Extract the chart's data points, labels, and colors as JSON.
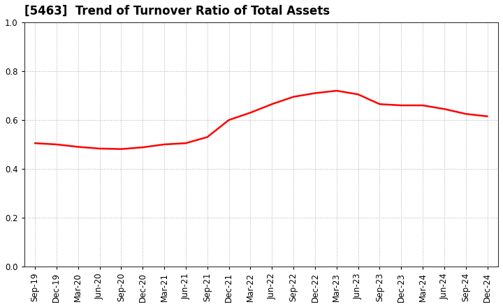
{
  "title": "[5463]  Trend of Turnover Ratio of Total Assets",
  "x_labels": [
    "Sep-19",
    "Dec-19",
    "Mar-20",
    "Jun-20",
    "Sep-20",
    "Dec-20",
    "Mar-21",
    "Jun-21",
    "Sep-21",
    "Dec-21",
    "Mar-22",
    "Jun-22",
    "Sep-22",
    "Dec-22",
    "Mar-23",
    "Jun-23",
    "Sep-23",
    "Dec-23",
    "Mar-24",
    "Jun-24",
    "Sep-24",
    "Dec-24"
  ],
  "y_values": [
    0.505,
    0.5,
    0.49,
    0.483,
    0.481,
    0.488,
    0.5,
    0.505,
    0.53,
    0.6,
    0.63,
    0.665,
    0.695,
    0.71,
    0.72,
    0.705,
    0.665,
    0.66,
    0.66,
    0.645,
    0.625,
    0.615
  ],
  "ylim": [
    0.0,
    1.0
  ],
  "yticks": [
    0.0,
    0.2,
    0.4,
    0.6,
    0.8,
    1.0
  ],
  "line_color": "#FF0000",
  "line_width": 1.8,
  "background_color": "#ffffff",
  "grid_color": "#999999",
  "title_fontsize": 12,
  "tick_fontsize": 8.5
}
